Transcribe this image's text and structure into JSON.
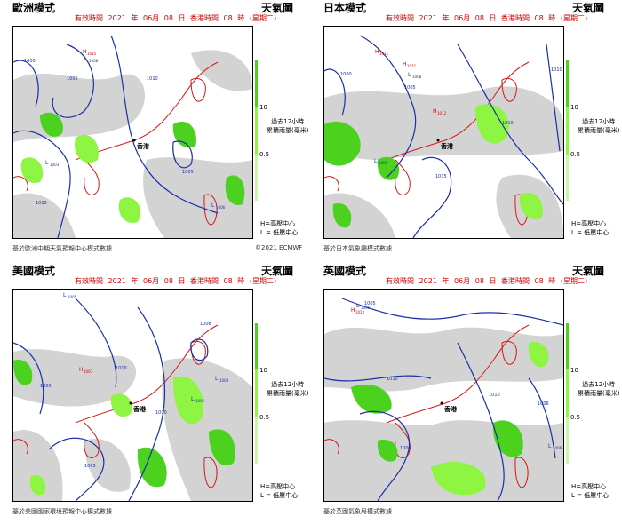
{
  "header": {
    "valid_label": "有效時間",
    "year": "2021",
    "year_unit": "年",
    "month": "06月",
    "day": "08",
    "day_unit": "日",
    "hk_time_label": "香港時間",
    "hour": "08",
    "hour_unit": "時",
    "weekday": "(星期二)",
    "map_label": "天氣圖"
  },
  "legend": {
    "high": "H=高壓中心",
    "low": "L = 低壓中心",
    "rain_line1": "過去12小時",
    "rain_line2": "累積雨量(毫米)",
    "tick_high": "10",
    "tick_low": "0.5"
  },
  "city_label": "香港",
  "panels": [
    {
      "title": "歐洲模式",
      "source": "基於歐洲中期天氣預報中心模式數據",
      "copyright": "©2021 ECMWF",
      "highs": [
        {
          "value": "1015",
          "label": "H"
        }
      ],
      "lows": [
        {
          "value": "1008",
          "label": "L"
        },
        {
          "value": "1003",
          "label": "L"
        },
        {
          "value": "1006",
          "label": "L"
        }
      ],
      "isobars": [
        "1000",
        "1005",
        "1010",
        "1010",
        "1005"
      ]
    },
    {
      "title": "日本模式",
      "source": "基於日本氣象廳模式數據",
      "copyright": "",
      "highs": [
        {
          "value": "1011",
          "label": "H"
        },
        {
          "value": "1011",
          "label": "H"
        },
        {
          "value": "1012",
          "label": "H"
        }
      ],
      "lows": [
        {
          "value": "1008",
          "label": "L"
        },
        {
          "value": "1005",
          "label": "L"
        }
      ],
      "isobars": [
        "1000",
        "1005",
        "1010",
        "1015",
        "1010"
      ]
    },
    {
      "title": "美國模式",
      "source": "基於美國國家環境預報中心模式數據",
      "copyright": "",
      "highs": [
        {
          "value": "1007",
          "label": "H"
        }
      ],
      "lows": [
        {
          "value": "1005",
          "label": "L"
        },
        {
          "value": "1006",
          "label": "L"
        },
        {
          "value": "1008",
          "label": "L"
        }
      ],
      "isobars": [
        "1005",
        "1010",
        "1010",
        "1005",
        "1008"
      ]
    },
    {
      "title": "英國模式",
      "source": "基於英國氣象局模式數據",
      "copyright": "",
      "highs": [
        {
          "value": "1012",
          "label": "H"
        }
      ],
      "lows": [
        {
          "value": "1005",
          "label": "L"
        },
        {
          "value": "1006",
          "label": "L"
        }
      ],
      "isobars": [
        "1005",
        "1010",
        "1010",
        "1005",
        "1006"
      ]
    }
  ],
  "colors": {
    "isobar": "#1a2fa8",
    "coast": "#d81818",
    "rain_light": "#8ef542",
    "rain_heavy": "#4cd11f",
    "cloud": "#d3d3d3"
  }
}
